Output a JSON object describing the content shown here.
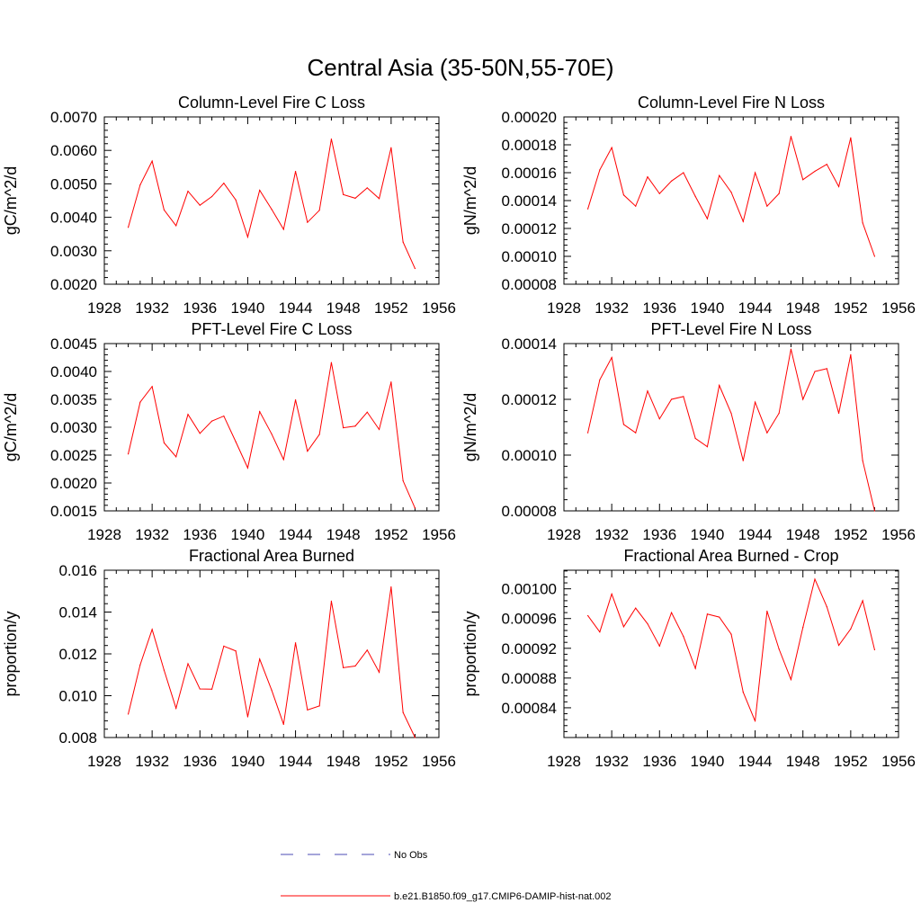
{
  "title": "Central Asia (35-50N,55-70E)",
  "colors": {
    "series": "#ff0000",
    "obs": "#4b4bb4",
    "axis": "#000000"
  },
  "legend": {
    "entries": [
      {
        "label": "No Obs",
        "style": "dashed",
        "color": "#4b4bb4"
      },
      {
        "label": "b.e21.B1850.f09_g17.CMIP6-DAMIP-hist-nat.002",
        "style": "solid",
        "color": "#ff0000"
      }
    ]
  },
  "chart_data": [
    {
      "type": "line",
      "title": "Column-Level Fire C Loss",
      "ylabel": "gC/m^2/d",
      "xlim": [
        1928,
        1956
      ],
      "xticks": [
        "1928",
        "1932",
        "1936",
        "1940",
        "1944",
        "1948",
        "1952",
        "1956"
      ],
      "ylim": [
        0.002,
        0.007
      ],
      "yticks": [
        "0.0020",
        "0.0030",
        "0.0040",
        "0.0050",
        "0.0060",
        "0.0070"
      ],
      "x": [
        1930,
        1931,
        1932,
        1933,
        1934,
        1935,
        1936,
        1937,
        1938,
        1939,
        1940,
        1941,
        1942,
        1943,
        1944,
        1945,
        1946,
        1947,
        1948,
        1949,
        1950,
        1951,
        1952,
        1953,
        1954
      ],
      "series": [
        {
          "name": "b.e21.B1850.f09_g17.CMIP6-DAMIP-hist-nat.002",
          "values": [
            0.0037,
            0.00497,
            0.00568,
            0.00422,
            0.00375,
            0.00478,
            0.00436,
            0.00462,
            0.00502,
            0.00452,
            0.00341,
            0.00481,
            0.00424,
            0.00364,
            0.00537,
            0.00385,
            0.00421,
            0.00634,
            0.00468,
            0.00457,
            0.00488,
            0.00456,
            0.00608,
            0.00326,
            0.00247
          ]
        }
      ]
    },
    {
      "type": "line",
      "title": "Column-Level Fire N Loss",
      "ylabel": "gN/m^2/d",
      "xlim": [
        1928,
        1956
      ],
      "xticks": [
        "1928",
        "1932",
        "1936",
        "1940",
        "1944",
        "1948",
        "1952",
        "1956"
      ],
      "ylim": [
        8e-05,
        0.0002
      ],
      "yticks": [
        "0.00008",
        "0.00010",
        "0.00012",
        "0.00014",
        "0.00016",
        "0.00018",
        "0.00020"
      ],
      "x": [
        1930,
        1931,
        1932,
        1933,
        1934,
        1935,
        1936,
        1937,
        1938,
        1939,
        1940,
        1941,
        1942,
        1943,
        1944,
        1945,
        1946,
        1947,
        1948,
        1949,
        1950,
        1951,
        1952,
        1953,
        1954
      ],
      "series": [
        {
          "name": "b.e21.B1850.f09_g17.CMIP6-DAMIP-hist-nat.002",
          "values": [
            0.000134,
            0.000162,
            0.000178,
            0.000144,
            0.000136,
            0.000157,
            0.000145,
            0.000154,
            0.00016,
            0.000143,
            0.000127,
            0.000158,
            0.000146,
            0.000125,
            0.00016,
            0.000136,
            0.000145,
            0.000186,
            0.000155,
            0.000161,
            0.000166,
            0.00015,
            0.000185,
            0.000124,
            0.0001
          ]
        }
      ]
    },
    {
      "type": "line",
      "title": "PFT-Level Fire C Loss",
      "ylabel": "gC/m^2/d",
      "xlim": [
        1928,
        1956
      ],
      "xticks": [
        "1928",
        "1932",
        "1936",
        "1940",
        "1944",
        "1948",
        "1952",
        "1956"
      ],
      "ylim": [
        0.0015,
        0.0045
      ],
      "yticks": [
        "0.0015",
        "0.0020",
        "0.0025",
        "0.0030",
        "0.0035",
        "0.0040",
        "0.0045"
      ],
      "x": [
        1930,
        1931,
        1932,
        1933,
        1934,
        1935,
        1936,
        1937,
        1938,
        1939,
        1940,
        1941,
        1942,
        1943,
        1944,
        1945,
        1946,
        1947,
        1948,
        1949,
        1950,
        1951,
        1952,
        1953,
        1954
      ],
      "series": [
        {
          "name": "b.e21.B1850.f09_g17.CMIP6-DAMIP-hist-nat.002",
          "values": [
            0.00252,
            0.00345,
            0.00373,
            0.00272,
            0.00247,
            0.00323,
            0.00289,
            0.00311,
            0.0032,
            0.00274,
            0.00227,
            0.00328,
            0.00288,
            0.00242,
            0.00349,
            0.00257,
            0.00287,
            0.00416,
            0.00299,
            0.00302,
            0.00327,
            0.00296,
            0.00381,
            0.00204,
            0.00155
          ]
        }
      ]
    },
    {
      "type": "line",
      "title": "PFT-Level Fire N Loss",
      "ylabel": "gN/m^2/d",
      "xlim": [
        1928,
        1956
      ],
      "xticks": [
        "1928",
        "1932",
        "1936",
        "1940",
        "1944",
        "1948",
        "1952",
        "1956"
      ],
      "ylim": [
        8e-05,
        0.00014
      ],
      "yticks": [
        "0.00008",
        "0.00010",
        "0.00012",
        "0.00014"
      ],
      "x": [
        1930,
        1931,
        1932,
        1933,
        1934,
        1935,
        1936,
        1937,
        1938,
        1939,
        1940,
        1941,
        1942,
        1943,
        1944,
        1945,
        1946,
        1947,
        1948,
        1949,
        1950,
        1951,
        1952,
        1953,
        1954
      ],
      "series": [
        {
          "name": "b.e21.B1850.f09_g17.CMIP6-DAMIP-hist-nat.002",
          "values": [
            0.000108,
            0.000127,
            0.000135,
            0.000111,
            0.000108,
            0.000123,
            0.000113,
            0.00012,
            0.000121,
            0.000106,
            0.000103,
            0.000125,
            0.000115,
            9.8e-05,
            0.000119,
            0.000108,
            0.000115,
            0.000138,
            0.00012,
            0.00013,
            0.000131,
            0.000115,
            0.000136,
            9.8e-05,
            8e-05
          ]
        }
      ]
    },
    {
      "type": "line",
      "title": "Fractional Area Burned",
      "ylabel": "proportion/y",
      "xlim": [
        1928,
        1956
      ],
      "xticks": [
        "1928",
        "1932",
        "1936",
        "1940",
        "1944",
        "1948",
        "1952",
        "1956"
      ],
      "ylim": [
        0.008,
        0.016
      ],
      "yticks": [
        "0.008",
        "0.010",
        "0.012",
        "0.014",
        "0.016"
      ],
      "x": [
        1930,
        1931,
        1932,
        1933,
        1934,
        1935,
        1936,
        1937,
        1938,
        1939,
        1940,
        1941,
        1942,
        1943,
        1944,
        1945,
        1946,
        1947,
        1948,
        1949,
        1950,
        1951,
        1952,
        1953,
        1954
      ],
      "series": [
        {
          "name": "b.e21.B1850.f09_g17.CMIP6-DAMIP-hist-nat.002",
          "values": [
            0.00912,
            0.01148,
            0.01317,
            0.01122,
            0.0094,
            0.01153,
            0.01032,
            0.01031,
            0.01237,
            0.01214,
            0.00899,
            0.01175,
            0.01027,
            0.00863,
            0.01253,
            0.00932,
            0.00951,
            0.01452,
            0.01134,
            0.01142,
            0.01218,
            0.01112,
            0.0152,
            0.0092,
            0.008
          ]
        }
      ]
    },
    {
      "type": "line",
      "title": "Fractional Area Burned - Crop",
      "ylabel": "proportion/y",
      "xlim": [
        1928,
        1956
      ],
      "xticks": [
        "1928",
        "1932",
        "1936",
        "1940",
        "1944",
        "1948",
        "1952",
        "1956"
      ],
      "ylim": [
        0.0008,
        0.001025
      ],
      "yticks": [
        "0.00084",
        "0.00088",
        "0.00092",
        "0.00096",
        "0.00100"
      ],
      "x": [
        1930,
        1931,
        1932,
        1933,
        1934,
        1935,
        1936,
        1937,
        1938,
        1939,
        1940,
        1941,
        1942,
        1943,
        1944,
        1945,
        1946,
        1947,
        1948,
        1949,
        1950,
        1951,
        1952,
        1953,
        1954
      ],
      "series": [
        {
          "name": "b.e21.B1850.f09_g17.CMIP6-DAMIP-hist-nat.002",
          "values": [
            0.000964,
            0.000942,
            0.000993,
            0.000949,
            0.000974,
            0.000953,
            0.000923,
            0.000968,
            0.000936,
            0.000893,
            0.000966,
            0.000962,
            0.000939,
            0.000861,
            0.000822,
            0.00097,
            0.000919,
            0.000878,
            0.000948,
            0.001013,
            0.000976,
            0.000924,
            0.000946,
            0.000984,
            0.000918
          ]
        }
      ]
    }
  ]
}
